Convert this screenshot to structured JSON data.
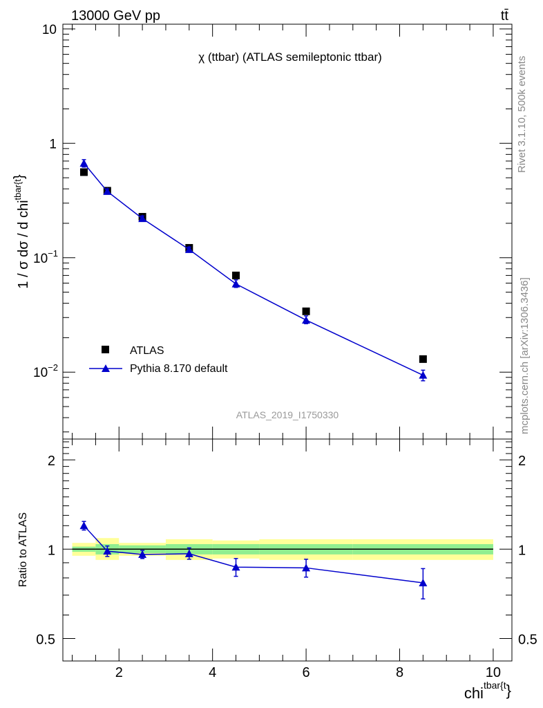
{
  "header": {
    "left": "13000 GeV pp",
    "right": "tt̄"
  },
  "side_labels": {
    "rivet": "Rivet 3.1.10,  500k events",
    "source": "mcplots.cern.ch [arXiv:1306.3436]"
  },
  "analysis_id": "ATLAS_2019_I1750330",
  "colors": {
    "mc": "#0000cc",
    "data": "#000000",
    "band_inner": "#90ee90",
    "band_outer": "#ffff99"
  },
  "chart_data": [
    {
      "type": "scatter",
      "panel": "main",
      "title": "χ (ttbar) (ATLAS semileptonic ttbar)",
      "ylabel": {
        "prefix": "1 / σ dσ / d chi",
        "sup": "tbar{t",
        "tail": "}"
      },
      "yscale": "log",
      "ylim": [
        0.0026,
        11
      ],
      "xlim": [
        0.8,
        10.4
      ],
      "y_ticks": [
        {
          "value": 10,
          "label": "10"
        },
        {
          "value": 1,
          "label": "1"
        },
        {
          "value": 0.1,
          "base": "10",
          "exp": "−1"
        },
        {
          "value": 0.01,
          "base": "10",
          "exp": "−2"
        }
      ],
      "legend_position": "bottom-left",
      "series": [
        {
          "name": "ATLAS",
          "marker": "square",
          "x": [
            1.25,
            1.75,
            2.5,
            3.5,
            4.5,
            6.0,
            8.5
          ],
          "y": [
            0.56,
            0.385,
            0.228,
            0.122,
            0.07,
            0.034,
            0.013
          ]
        },
        {
          "name": "Pythia 8.170 default",
          "marker": "triangle",
          "x": [
            1.25,
            1.75,
            2.5,
            3.5,
            4.5,
            6.0,
            8.5
          ],
          "y": [
            0.67,
            0.38,
            0.22,
            0.118,
            0.059,
            0.0285,
            0.0094
          ],
          "err_low": [
            0.62,
            0.36,
            0.21,
            0.112,
            0.055,
            0.0265,
            0.0084
          ],
          "err_high": [
            0.72,
            0.4,
            0.232,
            0.124,
            0.064,
            0.031,
            0.0104
          ]
        }
      ]
    },
    {
      "type": "scatter",
      "panel": "ratio",
      "ylabel": "Ratio to ATLAS",
      "xlabel": {
        "base": "chi",
        "sup": "tbar{t",
        "tail": "}"
      },
      "yscale": "log",
      "ylim": [
        0.42,
        2.35
      ],
      "xlim": [
        0.8,
        10.4
      ],
      "y_ticks": [
        {
          "value": 2,
          "label": "2"
        },
        {
          "value": 1,
          "label": "1"
        },
        {
          "value": 0.5,
          "label": "0.5"
        }
      ],
      "x_ticks": [
        {
          "value": 2,
          "label": "2"
        },
        {
          "value": 4,
          "label": "4"
        },
        {
          "value": 6,
          "label": "6"
        },
        {
          "value": 8,
          "label": "8"
        },
        {
          "value": 10,
          "label": "10"
        }
      ],
      "bands": [
        {
          "x0": 1.0,
          "x1": 1.5,
          "inner": [
            0.98,
            1.02
          ],
          "outer": [
            0.95,
            1.05
          ]
        },
        {
          "x0": 1.5,
          "x1": 2.0,
          "inner": [
            0.96,
            1.04
          ],
          "outer": [
            0.92,
            1.09
          ]
        },
        {
          "x0": 2.0,
          "x1": 3.0,
          "inner": [
            0.97,
            1.03
          ],
          "outer": [
            0.95,
            1.05
          ]
        },
        {
          "x0": 3.0,
          "x1": 4.0,
          "inner": [
            0.96,
            1.04
          ],
          "outer": [
            0.92,
            1.08
          ]
        },
        {
          "x0": 4.0,
          "x1": 5.0,
          "inner": [
            0.96,
            1.04
          ],
          "outer": [
            0.93,
            1.07
          ]
        },
        {
          "x0": 5.0,
          "x1": 7.0,
          "inner": [
            0.96,
            1.04
          ],
          "outer": [
            0.92,
            1.08
          ]
        },
        {
          "x0": 7.0,
          "x1": 10.0,
          "inner": [
            0.96,
            1.04
          ],
          "outer": [
            0.92,
            1.08
          ]
        }
      ],
      "series": [
        {
          "name": "Pythia 8.170 default",
          "marker": "triangle",
          "x": [
            1.25,
            1.75,
            2.5,
            3.5,
            4.5,
            6.0,
            8.5
          ],
          "y": [
            1.2,
            0.985,
            0.96,
            0.965,
            0.87,
            0.865,
            0.77
          ],
          "err_low": [
            1.16,
            0.945,
            0.93,
            0.925,
            0.81,
            0.805,
            0.68
          ],
          "err_high": [
            1.24,
            1.025,
            0.99,
            1.01,
            0.93,
            0.925,
            0.86
          ]
        }
      ]
    }
  ]
}
